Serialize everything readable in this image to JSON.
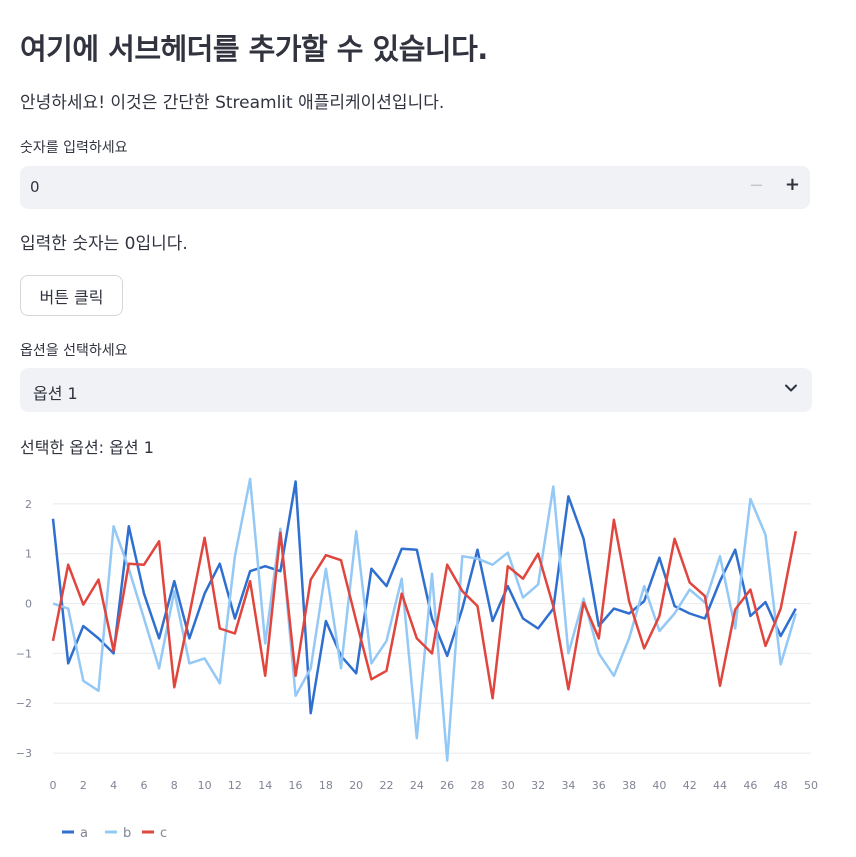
{
  "header": {
    "title": "여기에 서브헤더를 추가할 수 있습니다."
  },
  "intro": "안녕하세요! 이것은 간단한 Streamlit 애플리케이션입니다.",
  "number_input": {
    "label": "숫자를 입력하세요",
    "value": "0",
    "minus": "−",
    "plus": "+"
  },
  "result_text": "입력한 숫자는 0입니다.",
  "button": {
    "label": "버튼 클릭"
  },
  "select": {
    "label": "옵션을 선택하세요",
    "value": "옵션 1"
  },
  "selected_text": "선택한 옵션: 옵션 1",
  "colors": {
    "a": "#2f6fcf",
    "b": "#94c8f5",
    "c": "#e0453e"
  },
  "chart_data": {
    "type": "line",
    "xlim": [
      0,
      50
    ],
    "ylim": [
      -3.4,
      2.6
    ],
    "x_ticks": [
      0,
      2,
      4,
      6,
      8,
      10,
      12,
      14,
      16,
      18,
      20,
      22,
      24,
      26,
      28,
      30,
      32,
      34,
      36,
      38,
      40,
      42,
      44,
      46,
      48,
      50
    ],
    "y_ticks": [
      -3,
      -2,
      -1,
      0,
      1,
      2
    ],
    "x": [
      0,
      1,
      2,
      3,
      4,
      5,
      6,
      7,
      8,
      9,
      10,
      11,
      12,
      13,
      14,
      15,
      16,
      17,
      18,
      19,
      20,
      21,
      22,
      23,
      24,
      25,
      26,
      27,
      28,
      29,
      30,
      31,
      32,
      33,
      34,
      35,
      36,
      37,
      38,
      39,
      40,
      41,
      42,
      43,
      44,
      45,
      46,
      47,
      48,
      49
    ],
    "series": [
      {
        "name": "a",
        "values": [
          1.7,
          -1.2,
          -0.45,
          -0.7,
          -1.0,
          1.55,
          0.2,
          -0.7,
          0.45,
          -0.7,
          0.2,
          0.8,
          -0.3,
          0.65,
          0.75,
          0.65,
          2.45,
          -2.2,
          -0.35,
          -1.05,
          -1.4,
          0.7,
          0.35,
          1.1,
          1.08,
          -0.3,
          -1.05,
          -0.1,
          1.08,
          -0.35,
          0.35,
          -0.3,
          -0.5,
          -0.1,
          2.15,
          1.3,
          -0.45,
          -0.1,
          -0.2,
          0.05,
          0.92,
          -0.05,
          -0.2,
          -0.3,
          0.45,
          1.08,
          -0.25,
          0.03,
          -0.65,
          -0.1
        ]
      },
      {
        "name": "b",
        "values": [
          0,
          -0.1,
          -1.55,
          -1.75,
          1.55,
          0.7,
          -0.3,
          -1.3,
          0.25,
          -1.2,
          -1.1,
          -1.6,
          0.95,
          2.5,
          -0.8,
          1.5,
          -1.85,
          -1.3,
          0.7,
          -1.3,
          1.45,
          -1.2,
          -0.75,
          0.5,
          -2.7,
          0.6,
          -3.15,
          0.95,
          0.9,
          0.78,
          1.02,
          0.12,
          0.38,
          2.35,
          -1.0,
          0.1,
          -1.0,
          -1.45,
          -0.7,
          0.35,
          -0.55,
          -0.2,
          0.28,
          0.02,
          0.95,
          -0.5,
          2.1,
          1.38,
          -1.22,
          -0.2
        ]
      },
      {
        "name": "c",
        "values": [
          -0.75,
          0.78,
          -0.02,
          0.48,
          -0.95,
          0.8,
          0.78,
          1.25,
          -1.68,
          -0.22,
          1.32,
          -0.5,
          -0.6,
          0.45,
          -1.45,
          1.42,
          -1.45,
          0.48,
          0.97,
          0.87,
          -0.35,
          -1.52,
          -1.35,
          0.2,
          -0.7,
          -1.0,
          0.78,
          0.25,
          -0.05,
          -1.9,
          0.75,
          0.5,
          1.0,
          -0.05,
          -1.72,
          0.02,
          -0.7,
          1.68,
          0.05,
          -0.9,
          -0.25,
          1.3,
          0.42,
          0.15,
          -1.65,
          -0.12,
          0.28,
          -0.85,
          -0.1,
          1.45
        ]
      }
    ],
    "legend_position": "bottom-left",
    "grid": true
  }
}
